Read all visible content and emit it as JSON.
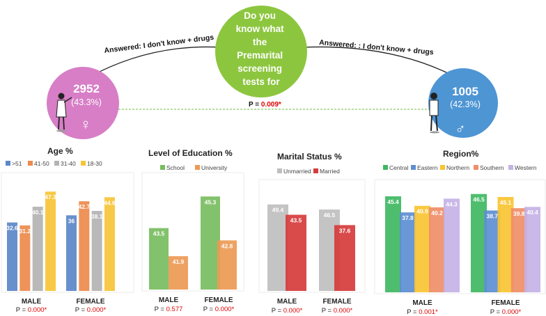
{
  "header": {
    "question": [
      "Do you",
      "know what",
      "the",
      "Premarital",
      "screening",
      "tests for"
    ],
    "left_answer": "Answered: I don't know + drugs",
    "right_answer": "Answered: : I don't know + drugs",
    "female": {
      "count": "2952",
      "pct": "(43.3%)",
      "symbol": "♀"
    },
    "male": {
      "count": "1005",
      "pct": "(42.3%)",
      "symbol": "♂"
    },
    "p_label": "P = ",
    "p_value": "0.009*"
  },
  "colors": {
    "question_circle": "#8cc63f",
    "female_circle": "#d77ec6",
    "male_circle": "#4e95d4",
    "p_red": "#e00000",
    "dashed_line": "#6bbf3b"
  },
  "chart_data": [
    {
      "type": "bar",
      "title": "Age %",
      "categories": [
        "MALE",
        "FEMALE"
      ],
      "series": [
        {
          "name": ">51",
          "color": "#5b87c9",
          "values": [
            32.6,
            36
          ]
        },
        {
          "name": "41-50",
          "color": "#ed8a4c",
          "values": [
            31.2,
            42.7
          ]
        },
        {
          "name": "31-40",
          "color": "#b3b3b3",
          "values": [
            40.1,
            38.1
          ]
        },
        {
          "name": "18-30",
          "color": "#f7c436",
          "values": [
            47.3,
            44.6
          ]
        }
      ],
      "p_values": [
        "0.000*",
        "0.000*"
      ],
      "ylim": [
        0,
        55
      ]
    },
    {
      "type": "bar",
      "title": "Level of Education %",
      "categories": [
        "MALE",
        "FEMALE"
      ],
      "series": [
        {
          "name": "School",
          "color": "#78bd5f",
          "values": [
            43.5,
            45.3
          ]
        },
        {
          "name": "University",
          "color": "#ed9a55",
          "values": [
            41.9,
            42.8
          ]
        }
      ],
      "p_values": [
        "0.577",
        "0.000*"
      ],
      "ylim": [
        40,
        46.5
      ]
    },
    {
      "type": "bar",
      "title": "Marital Status %",
      "categories": [
        "MALE",
        "FEMALE"
      ],
      "series": [
        {
          "name": "Unmarried",
          "color": "#bfbfbf",
          "values": [
            49.4,
            46.5
          ]
        },
        {
          "name": "Married",
          "color": "#d63c3c",
          "values": [
            43.5,
            37.6
          ]
        }
      ],
      "p_values": [
        "0.000*",
        "0.000*"
      ],
      "ylim": [
        0,
        62
      ]
    },
    {
      "type": "bar",
      "title": "Region%",
      "categories": [
        "MALE",
        "FEMALE"
      ],
      "series": [
        {
          "name": "Central",
          "color": "#3fb862",
          "values": [
            45.4,
            46.5
          ]
        },
        {
          "name": "Eastern",
          "color": "#5d8ed1",
          "values": [
            37.8,
            38.7
          ]
        },
        {
          "name": "Northern",
          "color": "#f9c433",
          "values": [
            40.9,
            45.1
          ]
        },
        {
          "name": "Southern",
          "color": "#ef8e68",
          "values": [
            40.2,
            39.8
          ]
        },
        {
          "name": "Western",
          "color": "#c4b2e6",
          "values": [
            44.3,
            40.4
          ]
        }
      ],
      "p_values": [
        "0.001*",
        "0.000*"
      ],
      "ylim": [
        0,
        52
      ]
    }
  ]
}
